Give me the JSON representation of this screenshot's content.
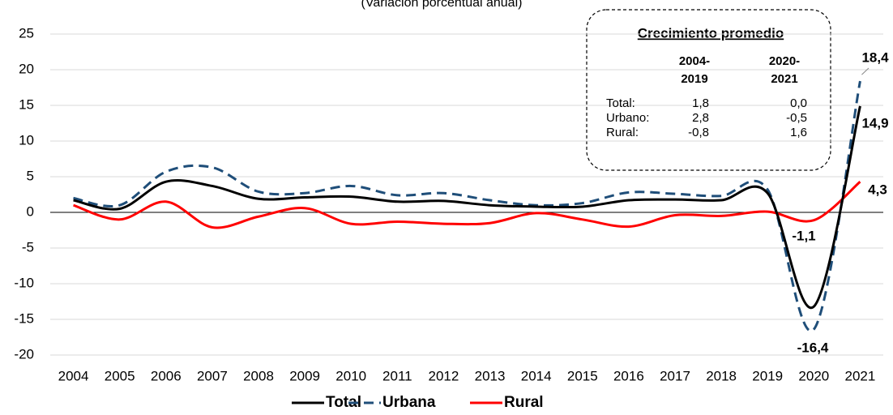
{
  "chart_data": {
    "type": "line",
    "subtitle": "(Variación porcentual anual)",
    "categories": [
      "2004",
      "2005",
      "2006",
      "2007",
      "2008",
      "2009",
      "2010",
      "2011",
      "2012",
      "2013",
      "2014",
      "2015",
      "2016",
      "2017",
      "2018",
      "2019",
      "2020",
      "2021"
    ],
    "series": [
      {
        "name": "Total",
        "color": "#000000",
        "dash": "solid",
        "values": [
          1.7,
          0.5,
          4.3,
          3.7,
          1.9,
          2.1,
          2.2,
          1.5,
          1.6,
          1.0,
          0.8,
          0.8,
          1.7,
          1.8,
          1.7,
          2.7,
          -13.2,
          14.9
        ],
        "value_labels": [
          null,
          null,
          null,
          null,
          null,
          null,
          null,
          null,
          null,
          null,
          null,
          null,
          null,
          null,
          null,
          null,
          null,
          "14,9"
        ]
      },
      {
        "name": "Urbana",
        "color": "#1f4e79",
        "dash": "dashed",
        "values": [
          2.0,
          1.0,
          5.7,
          6.3,
          2.9,
          2.7,
          3.7,
          2.4,
          2.7,
          1.7,
          1.0,
          1.3,
          2.8,
          2.6,
          2.3,
          3.2,
          -16.4,
          18.4
        ],
        "value_labels": [
          null,
          null,
          null,
          null,
          null,
          null,
          null,
          null,
          null,
          null,
          null,
          null,
          null,
          null,
          null,
          null,
          "-16,4",
          "18,4"
        ]
      },
      {
        "name": "Rural",
        "color": "#ff0000",
        "dash": "solid",
        "values": [
          1.0,
          -1.0,
          1.5,
          -2.1,
          -0.6,
          0.6,
          -1.6,
          -1.3,
          -1.6,
          -1.5,
          -0.1,
          -1.0,
          -2.0,
          -0.4,
          -0.5,
          0.1,
          -1.1,
          4.3
        ],
        "value_labels": [
          null,
          null,
          null,
          null,
          null,
          null,
          null,
          null,
          null,
          null,
          null,
          null,
          null,
          null,
          null,
          null,
          "-1,1",
          "4,3"
        ]
      }
    ],
    "ylim": [
      -20,
      25
    ],
    "yticks": [
      -20,
      -15,
      -10,
      -5,
      0,
      5,
      10,
      15,
      20,
      25
    ],
    "grid": true,
    "legend": "bottom",
    "summary_box": {
      "title": "Crecimiento promedio",
      "columns": [
        [
          "2004-",
          "2019"
        ],
        [
          "2020-",
          "2021"
        ]
      ],
      "rows": [
        [
          "Total:",
          "1,8",
          "0,0"
        ],
        [
          "Urbano:",
          "2,8",
          "-0,5"
        ],
        [
          "Rural:",
          "-0,8",
          "1,6"
        ]
      ]
    }
  }
}
